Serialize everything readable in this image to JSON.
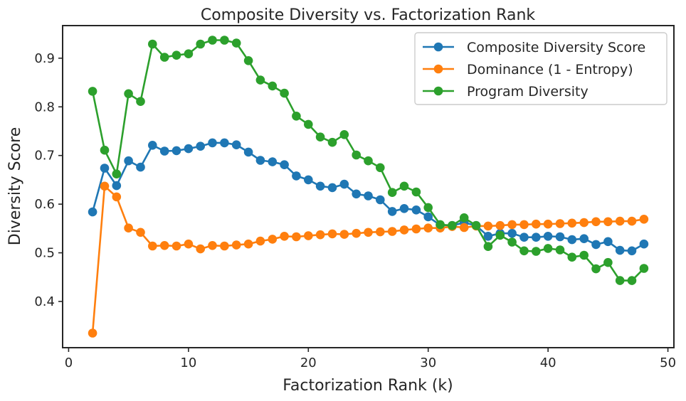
{
  "chart_data": {
    "type": "line",
    "title": "Composite Diversity vs. Factorization Rank",
    "xlabel": "Factorization Rank (k)",
    "ylabel": "Diversity Score",
    "xlim": [
      -0.5,
      50.5
    ],
    "ylim": [
      0.305,
      0.967
    ],
    "xticks": [
      0,
      10,
      20,
      30,
      40,
      50
    ],
    "yticks": [
      0.4,
      0.5,
      0.6,
      0.7,
      0.8,
      0.9
    ],
    "grid": false,
    "legend_position": "top-right",
    "x": [
      2,
      3,
      4,
      5,
      6,
      7,
      8,
      9,
      10,
      11,
      12,
      13,
      14,
      15,
      16,
      17,
      18,
      19,
      20,
      21,
      22,
      23,
      24,
      25,
      26,
      27,
      28,
      29,
      30,
      31,
      32,
      33,
      34,
      35,
      36,
      37,
      38,
      39,
      40,
      41,
      42,
      43,
      44,
      45,
      46,
      47,
      48
    ],
    "series": [
      {
        "name": "Composite Diversity Score",
        "color": "#1f77b4",
        "values": [
          0.584,
          0.674,
          0.638,
          0.689,
          0.676,
          0.721,
          0.709,
          0.71,
          0.714,
          0.719,
          0.726,
          0.726,
          0.722,
          0.707,
          0.69,
          0.687,
          0.681,
          0.658,
          0.65,
          0.637,
          0.634,
          0.641,
          0.621,
          0.617,
          0.609,
          0.585,
          0.591,
          0.588,
          0.574,
          0.557,
          0.556,
          0.562,
          0.556,
          0.534,
          0.54,
          0.54,
          0.532,
          0.532,
          0.534,
          0.533,
          0.527,
          0.529,
          0.517,
          0.523,
          0.505,
          0.504,
          0.518
        ]
      },
      {
        "name": "Dominance (1 - Entropy)",
        "color": "#ff7f0e",
        "values": [
          0.335,
          0.637,
          0.615,
          0.551,
          0.542,
          0.514,
          0.515,
          0.514,
          0.518,
          0.508,
          0.515,
          0.514,
          0.516,
          0.518,
          0.524,
          0.528,
          0.534,
          0.533,
          0.535,
          0.537,
          0.539,
          0.538,
          0.54,
          0.542,
          0.543,
          0.544,
          0.547,
          0.549,
          0.551,
          0.551,
          0.554,
          0.552,
          0.555,
          0.555,
          0.556,
          0.558,
          0.558,
          0.559,
          0.559,
          0.56,
          0.561,
          0.562,
          0.564,
          0.564,
          0.565,
          0.565,
          0.569
        ]
      },
      {
        "name": "Program Diversity",
        "color": "#2ca02c",
        "values": [
          0.832,
          0.711,
          0.662,
          0.827,
          0.811,
          0.929,
          0.902,
          0.906,
          0.909,
          0.929,
          0.937,
          0.937,
          0.931,
          0.895,
          0.855,
          0.843,
          0.828,
          0.781,
          0.764,
          0.738,
          0.727,
          0.743,
          0.701,
          0.689,
          0.675,
          0.624,
          0.637,
          0.625,
          0.593,
          0.558,
          0.556,
          0.572,
          0.556,
          0.513,
          0.536,
          0.522,
          0.504,
          0.503,
          0.509,
          0.506,
          0.491,
          0.495,
          0.467,
          0.48,
          0.443,
          0.443,
          0.468
        ]
      }
    ]
  }
}
